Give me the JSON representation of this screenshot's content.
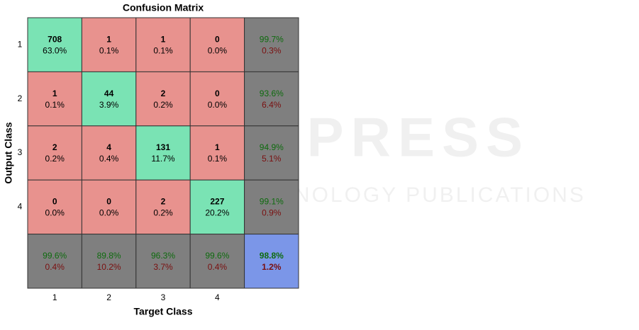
{
  "title": "Confusion Matrix",
  "x_label": "Target Class",
  "y_label": "Output Class",
  "row_labels": [
    "1",
    "2",
    "3",
    "4"
  ],
  "col_labels": [
    "1",
    "2",
    "3",
    "4"
  ],
  "matrix": [
    [
      {
        "count": 708,
        "percent": "63.0%"
      },
      {
        "count": 1,
        "percent": "0.1%"
      },
      {
        "count": 1,
        "percent": "0.1%"
      },
      {
        "count": 0,
        "percent": "0.0%"
      }
    ],
    [
      {
        "count": 1,
        "percent": "0.1%"
      },
      {
        "count": 44,
        "percent": "3.9%"
      },
      {
        "count": 2,
        "percent": "0.2%"
      },
      {
        "count": 0,
        "percent": "0.0%"
      }
    ],
    [
      {
        "count": 2,
        "percent": "0.2%"
      },
      {
        "count": 4,
        "percent": "0.4%"
      },
      {
        "count": 131,
        "percent": "11.7%"
      },
      {
        "count": 1,
        "percent": "0.1%"
      }
    ],
    [
      {
        "count": 0,
        "percent": "0.0%"
      },
      {
        "count": 0,
        "percent": "0.0%"
      },
      {
        "count": 2,
        "percent": "0.2%"
      },
      {
        "count": 227,
        "percent": "20.2%"
      }
    ]
  ],
  "row_summary": [
    [
      "99.7%",
      "0.3%"
    ],
    [
      "93.6%",
      "6.4%"
    ],
    [
      "94.9%",
      "5.1%"
    ],
    [
      "99.1%",
      "0.9%"
    ]
  ],
  "col_summary": [
    [
      "99.6%",
      "0.4%"
    ],
    [
      "89.8%",
      "10.2%"
    ],
    [
      "96.3%",
      "3.7%"
    ],
    [
      "99.6%",
      "0.4%"
    ]
  ],
  "overall": [
    "98.8%",
    "1.2%"
  ],
  "watermark": {
    "main": "SCITEPRESS",
    "sub": "SCIENCE AND TECHNOLOGY PUBLICATIONS"
  }
}
